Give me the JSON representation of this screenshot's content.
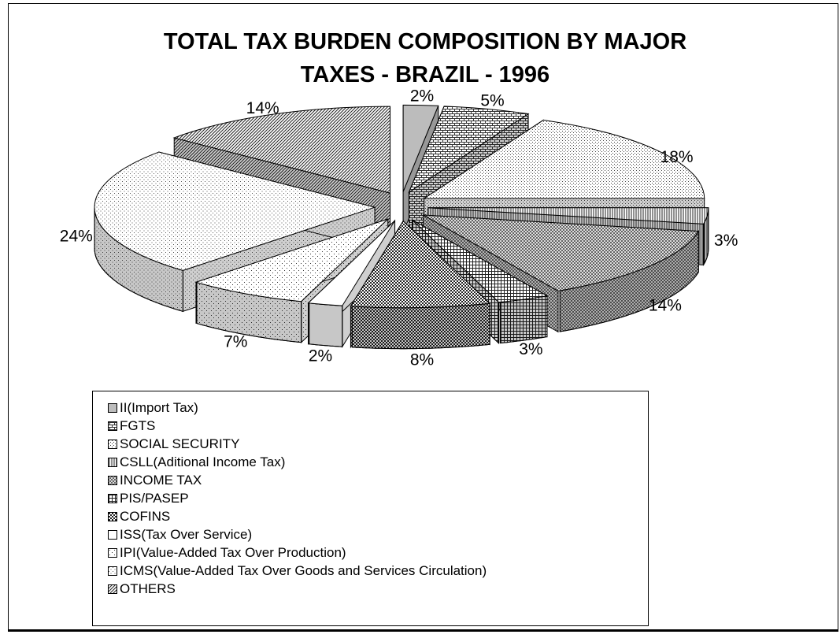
{
  "chart_data": {
    "type": "pie",
    "title": "TOTAL TAX BURDEN COMPOSITION BY MAJOR\nTAXES - BRAZIL - 1996",
    "legend_position": "bottom-left",
    "slices": [
      {
        "label": "II(Import Tax)",
        "value": 2,
        "value_label": "2%",
        "pattern": "solid-gray"
      },
      {
        "label": "FGTS",
        "value": 5,
        "value_label": "5%",
        "pattern": "brick"
      },
      {
        "label": "SOCIAL SECURITY",
        "value": 18,
        "value_label": "18%",
        "pattern": "fine-dots"
      },
      {
        "label": "CSLL(Aditional Income Tax)",
        "value": 3,
        "value_label": "3%",
        "pattern": "vertical-lines"
      },
      {
        "label": "INCOME TAX",
        "value": 14,
        "value_label": "14%",
        "pattern": "fine-crosshatch"
      },
      {
        "label": "PIS/PASEP",
        "value": 3,
        "value_label": "3%",
        "pattern": "grid"
      },
      {
        "label": "COFINS",
        "value": 8,
        "value_label": "8%",
        "pattern": "checker"
      },
      {
        "label": "ISS(Tax Over Service)",
        "value": 2,
        "value_label": "2%",
        "pattern": "white"
      },
      {
        "label": "IPI(Value-Added Tax Over Production)",
        "value": 7,
        "value_label": "7%",
        "pattern": "sparse-dots"
      },
      {
        "label": "ICMS(Value-Added Tax Over Goods and Services Circulation)",
        "value": 24,
        "value_label": "24%",
        "pattern": "light-dots"
      },
      {
        "label": "OTHERS",
        "value": 14,
        "value_label": "14%",
        "pattern": "diagonal"
      }
    ]
  }
}
